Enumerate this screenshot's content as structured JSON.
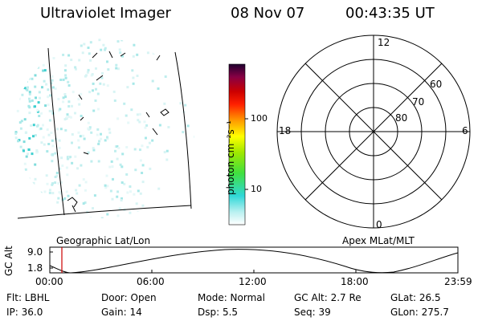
{
  "header": {
    "instrument": "Ultraviolet Imager",
    "date": "08 Nov 07",
    "time": "00:43:35 UT"
  },
  "colorbar": {
    "label": "photon cm⁻²s⁻¹",
    "ticks": [
      "100",
      "10"
    ]
  },
  "polar_plot": {
    "mlt_labels": [
      "12",
      "18",
      "6",
      "0"
    ],
    "lat_labels": [
      "60",
      "70",
      "80"
    ]
  },
  "panels": {
    "geo_label": "Geographic Lat/Lon",
    "apex_label": "Apex MLat/MLT"
  },
  "altitude_plot": {
    "ylabel": "GC Alt",
    "yticks": [
      "9.0",
      "1.8"
    ],
    "xticks": [
      "00:00",
      "06:00",
      "12:00",
      "18:00",
      "23:59"
    ],
    "marker_time": "00:43:35"
  },
  "info": {
    "flt": "Flt: LBHL",
    "door": "Door: Open",
    "mode": "Mode: Normal",
    "gc_alt": "GC Alt: 2.7 Re",
    "glat": "GLat:  26.5",
    "ip": "IP: 36.0",
    "gain": "Gain: 14",
    "dsp": "Dsp:     5.5",
    "seq": "Seq: 39",
    "glon": "GLon: 275.7"
  },
  "colors": {
    "marker": "#cc0000",
    "emission": "#40d8d8",
    "colorbar_stops": [
      "#ffffff",
      "#b0f0f0",
      "#30d8d8",
      "#40e040",
      "#90e800",
      "#ffff00",
      "#ff9900",
      "#ff2000",
      "#cc0000",
      "#880044",
      "#200030"
    ]
  }
}
